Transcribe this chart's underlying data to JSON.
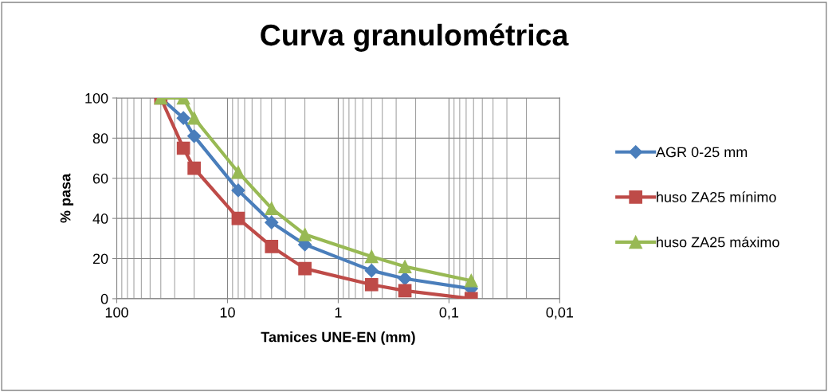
{
  "chart_data": {
    "type": "line",
    "title": "Curva granulométrica",
    "xlabel": "Tamices UNE-EN (mm)",
    "ylabel": "% pasa",
    "x": [
      40,
      25,
      20,
      8,
      4,
      2,
      0.5,
      0.25,
      0.063
    ],
    "series": [
      {
        "name": "AGR 0-25 mm",
        "color": "#4a7ebb",
        "marker": "diamond",
        "values": [
          100,
          90,
          81,
          54,
          38,
          27,
          14,
          10,
          5
        ]
      },
      {
        "name": "huso ZA25 mínimo",
        "color": "#be4b48",
        "marker": "square",
        "values": [
          100,
          75,
          65,
          40,
          26,
          15,
          7,
          4,
          0
        ]
      },
      {
        "name": "huso ZA25 máximo",
        "color": "#98b954",
        "marker": "triangle",
        "values": [
          100,
          100,
          90,
          63,
          45,
          32,
          21,
          16,
          9
        ]
      }
    ],
    "log": "x",
    "xlim": [
      100,
      0.01
    ],
    "xticks": [
      100,
      10,
      1,
      {
        "value": 0.1,
        "label": "0,1"
      },
      {
        "value": 0.01,
        "label": "0,01"
      }
    ],
    "ylim": [
      0,
      100
    ],
    "yticks": [
      0,
      20,
      40,
      60,
      80,
      100
    ],
    "grid": true,
    "legend": "right",
    "line_style": "solid"
  }
}
